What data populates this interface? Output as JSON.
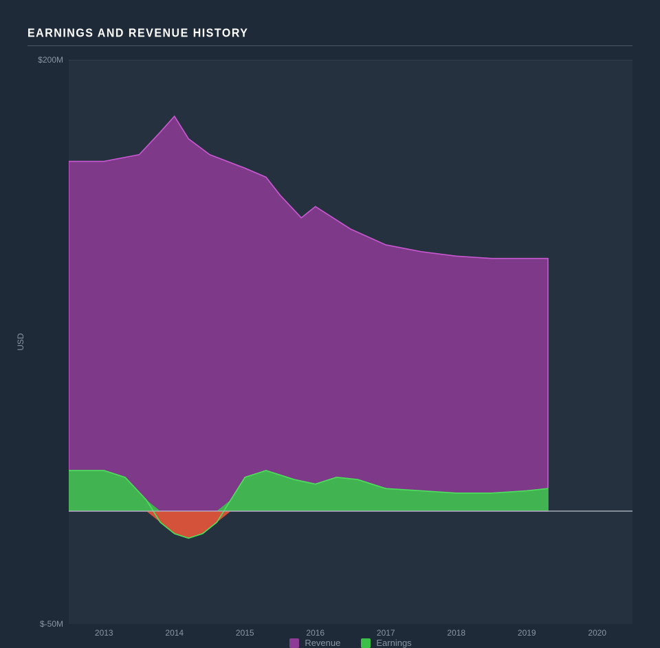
{
  "chart": {
    "type": "area",
    "title": "EARNINGS AND REVENUE HISTORY",
    "background_color": "#1e2a38",
    "plot_background": "#25313f",
    "grid_color": "#4a5866",
    "text_color": "#8a96a3",
    "title_color": "#ffffff",
    "title_fontsize": 16,
    "axis_fontsize": 12,
    "yaxis": {
      "label": "USD",
      "min": -50,
      "max": 200,
      "ticks": [
        {
          "value": 200,
          "label": "$200M"
        },
        {
          "value": -50,
          "label": "$-50M"
        }
      ]
    },
    "xaxis": {
      "min": 2012.5,
      "max": 2020.5,
      "ticks": [
        2013,
        2014,
        2015,
        2016,
        2017,
        2018,
        2019,
        2020
      ]
    },
    "series": [
      {
        "name": "Revenue",
        "color": "#8e3b95",
        "stroke": "#c858d0",
        "fill_opacity": 0.85,
        "x": [
          2012.5,
          2013,
          2013.5,
          2013.8,
          2014,
          2014.2,
          2014.5,
          2015,
          2015.3,
          2015.5,
          2015.8,
          2016,
          2016.5,
          2017,
          2017.5,
          2018,
          2018.5,
          2019,
          2019.3
        ],
        "y": [
          155,
          155,
          158,
          168,
          175,
          165,
          158,
          152,
          148,
          140,
          130,
          135,
          125,
          118,
          115,
          113,
          112,
          112,
          112
        ]
      },
      {
        "name": "Earnings",
        "color": "#3bc14a",
        "stroke": "#4de05c",
        "negative_color": "#e8553a",
        "fill_opacity": 0.9,
        "x": [
          2012.5,
          2013,
          2013.3,
          2013.6,
          2013.8,
          2014,
          2014.2,
          2014.4,
          2014.6,
          2014.8,
          2015,
          2015.3,
          2015.7,
          2016,
          2016.3,
          2016.6,
          2017,
          2017.5,
          2018,
          2018.5,
          2019,
          2019.3
        ],
        "y": [
          18,
          18,
          15,
          5,
          -5,
          -10,
          -12,
          -10,
          -5,
          5,
          15,
          18,
          14,
          12,
          15,
          14,
          10,
          9,
          8,
          8,
          9,
          10
        ]
      }
    ],
    "legend": {
      "position": "bottom-center",
      "items": [
        {
          "label": "Revenue",
          "color": "#8e3b95"
        },
        {
          "label": "Earnings",
          "color": "#3bc14a"
        }
      ]
    }
  }
}
